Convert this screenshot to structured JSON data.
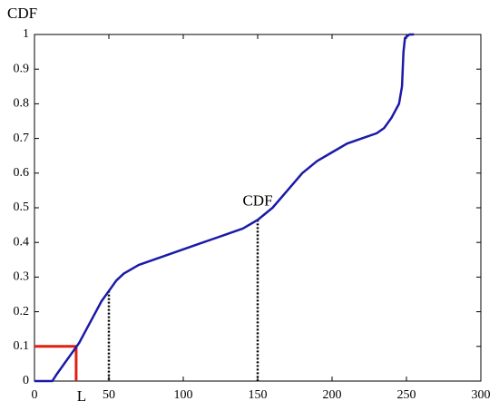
{
  "chart_data": {
    "type": "line",
    "ylabel": "CDF",
    "annotation": "CDF",
    "x": [
      0,
      12,
      15,
      20,
      25,
      30,
      35,
      40,
      45,
      50,
      55,
      60,
      70,
      80,
      90,
      100,
      110,
      120,
      130,
      140,
      150,
      160,
      170,
      180,
      190,
      200,
      210,
      220,
      230,
      235,
      240,
      245,
      247,
      248,
      249,
      252,
      255
    ],
    "series": [
      {
        "color": "#1a1aa8",
        "values": [
          0,
          0,
          0.02,
          0.05,
          0.08,
          0.11,
          0.15,
          0.19,
          0.23,
          0.26,
          0.29,
          0.31,
          0.335,
          0.35,
          0.365,
          0.38,
          0.395,
          0.41,
          0.425,
          0.44,
          0.465,
          0.5,
          0.55,
          0.6,
          0.635,
          0.66,
          0.685,
          0.7,
          0.715,
          0.73,
          0.76,
          0.8,
          0.85,
          0.95,
          0.99,
          1,
          1
        ]
      }
    ],
    "guides": [
      {
        "x": 28,
        "y": 0.1,
        "color": "#e02010",
        "style": "solid",
        "label": "L"
      },
      {
        "x": 50,
        "y": 0.26,
        "color": "#000000",
        "style": "dotted"
      },
      {
        "x": 150,
        "y": 0.465,
        "color": "#000000",
        "style": "dotted"
      }
    ],
    "xlim": [
      0,
      300
    ],
    "xticks": [
      0,
      50,
      100,
      150,
      200,
      250,
      300
    ],
    "ylim": [
      0,
      1
    ],
    "yticks": [
      0,
      0.1,
      0.2,
      0.3,
      0.4,
      0.5,
      0.6,
      0.7,
      0.8,
      0.9,
      1
    ]
  }
}
